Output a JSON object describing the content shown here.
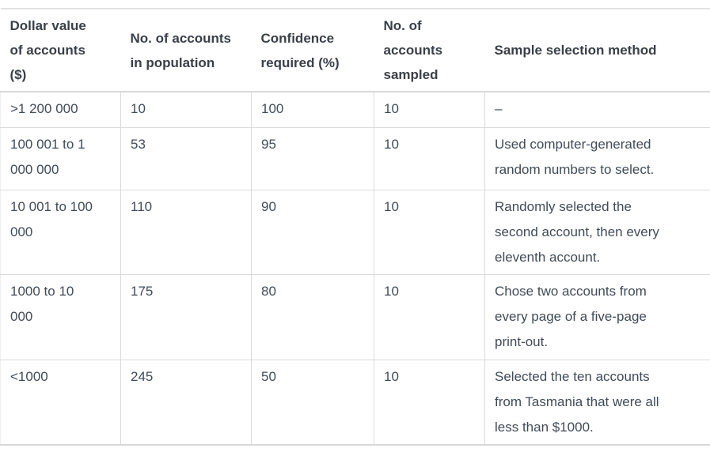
{
  "table": {
    "columns": [
      {
        "label": "Dollar value\nof accounts\n($)"
      },
      {
        "label": "No. of accounts\nin population"
      },
      {
        "label": "Confidence\nrequired (%)"
      },
      {
        "label": "No. of\naccounts\nsampled"
      },
      {
        "label": "Sample selection method"
      }
    ],
    "rows": [
      {
        "cells": [
          ">1 200 000",
          "10",
          "100",
          "10",
          "–"
        ]
      },
      {
        "cells": [
          "100 001 to 1\n000 000",
          "53",
          "95",
          "10",
          "Used computer-generated\nrandom numbers to select."
        ]
      },
      {
        "cells": [
          "10 001 to 100\n000",
          "110",
          "90",
          "10",
          "Randomly selected the\nsecond account, then every\neleventh account."
        ]
      },
      {
        "cells": [
          "1000 to 10\n000",
          "175",
          "80",
          "10",
          "Chose two accounts from\nevery page of a five-page\nprint-out."
        ]
      },
      {
        "cells": [
          "<1000",
          "245",
          "50",
          "10",
          "Selected the ten accounts\nfrom Tasmania that were all\nless than $1000."
        ]
      }
    ],
    "colors": {
      "background": "#ffffff",
      "border": "#dadada",
      "header_text": "#3a3f48",
      "body_text": "#414b57"
    }
  }
}
